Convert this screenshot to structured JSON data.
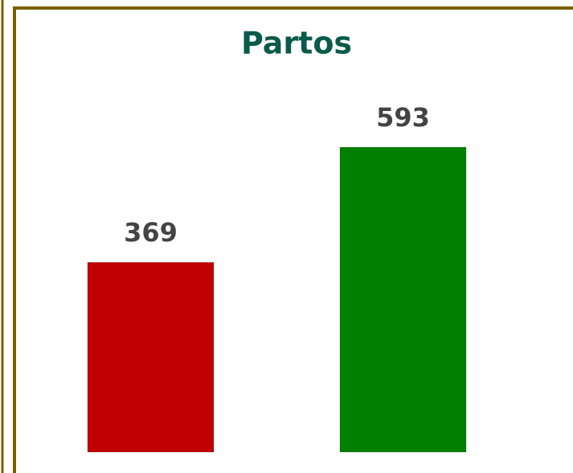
{
  "chart_data": {
    "type": "bar",
    "title": "Partos",
    "categories": [
      null,
      null
    ],
    "values": [
      369,
      593
    ],
    "colors": [
      "#c00000",
      "#008000"
    ]
  }
}
